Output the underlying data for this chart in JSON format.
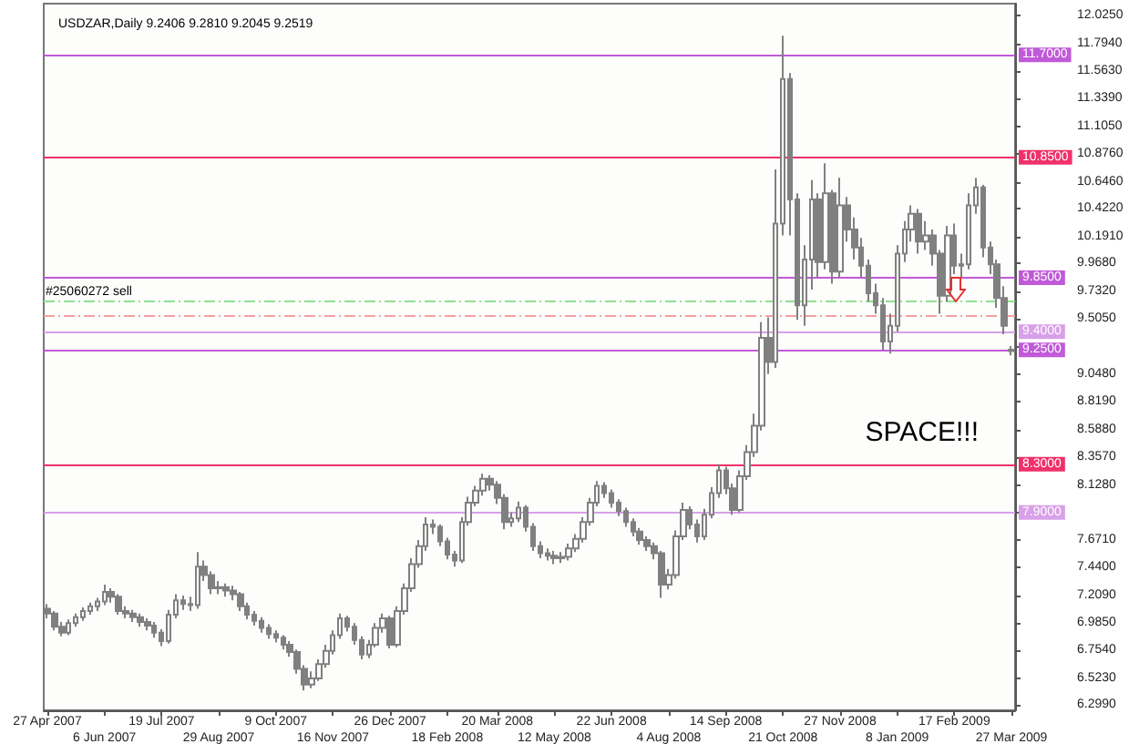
{
  "chart_data": {
    "type": "candlestick",
    "title": "USDZAR,Daily 9.2406 9.2810 9.2045 9.2519",
    "color": "#808080",
    "categories": [
      "27 Apr 2007",
      null,
      null,
      null,
      null,
      null,
      null,
      null,
      "6 Jun 2007",
      null,
      null,
      null,
      null,
      null,
      null,
      null,
      "19 Jul 2007",
      null,
      null,
      null,
      null,
      null,
      null,
      null,
      "29 Aug 2007",
      null,
      null,
      null,
      null,
      null,
      null,
      null,
      "9 Oct 2007",
      null,
      null,
      null,
      null,
      null,
      null,
      null,
      "16 Nov 2007",
      null,
      null,
      null,
      null,
      null,
      null,
      null,
      "26 Dec 2007",
      null,
      null,
      null,
      null,
      null,
      null,
      null,
      "18 Feb 2008",
      null,
      null,
      null,
      null,
      null,
      null,
      "20 Mar 2008",
      null,
      null,
      null,
      null,
      null,
      null,
      null,
      "12 May 2008",
      null,
      null,
      null,
      null,
      null,
      null,
      null,
      "22 Jun 2008",
      null,
      null,
      null,
      null,
      null,
      null,
      null,
      "4 Aug 2008",
      null,
      null,
      null,
      null,
      null,
      null,
      null,
      "14 Sep 2008",
      null,
      null,
      null,
      null,
      null,
      null,
      null,
      "21 Oct 2008",
      null,
      null,
      null,
      null,
      null,
      null,
      null,
      "27 Nov 2008",
      null,
      null,
      null,
      null,
      null,
      null,
      null,
      "8 Jan 2009",
      null,
      null,
      null,
      null,
      null,
      null,
      null,
      "17 Feb 2009",
      null,
      null,
      null,
      null,
      null,
      null,
      null,
      "27 Mar 2009"
    ],
    "ohlc": [
      [
        7.1,
        7.14,
        7.02,
        7.06
      ],
      [
        7.06,
        7.08,
        6.92,
        6.95
      ],
      [
        6.95,
        6.99,
        6.87,
        6.9
      ],
      [
        6.9,
        7.01,
        6.88,
        6.98
      ],
      [
        6.98,
        7.06,
        6.95,
        7.03
      ],
      [
        7.03,
        7.11,
        7.0,
        7.08
      ],
      [
        7.08,
        7.15,
        7.05,
        7.12
      ],
      [
        7.12,
        7.19,
        7.08,
        7.16
      ],
      [
        7.16,
        7.3,
        7.13,
        7.24
      ],
      [
        7.24,
        7.27,
        7.15,
        7.2
      ],
      [
        7.2,
        7.22,
        7.05,
        7.08
      ],
      [
        7.08,
        7.12,
        7.02,
        7.06
      ],
      [
        7.06,
        7.09,
        6.99,
        7.03
      ],
      [
        7.03,
        7.06,
        6.95,
        6.99
      ],
      [
        6.99,
        7.02,
        6.92,
        6.96
      ],
      [
        6.96,
        6.99,
        6.86,
        6.9
      ],
      [
        6.9,
        6.93,
        6.79,
        6.83
      ],
      [
        6.83,
        7.09,
        6.81,
        7.05
      ],
      [
        7.05,
        7.22,
        7.02,
        7.17
      ],
      [
        7.17,
        7.21,
        7.09,
        7.14
      ],
      [
        7.14,
        7.2,
        7.08,
        7.13
      ],
      [
        7.13,
        7.57,
        7.1,
        7.45
      ],
      [
        7.45,
        7.5,
        7.33,
        7.38
      ],
      [
        7.38,
        7.41,
        7.22,
        7.27
      ],
      [
        7.27,
        7.33,
        7.22,
        7.28
      ],
      [
        7.28,
        7.31,
        7.2,
        7.25
      ],
      [
        7.25,
        7.29,
        7.17,
        7.22
      ],
      [
        7.22,
        7.24,
        7.08,
        7.12
      ],
      [
        7.12,
        7.15,
        7.01,
        7.05
      ],
      [
        7.05,
        7.08,
        6.96,
        7.0
      ],
      [
        7.0,
        7.03,
        6.9,
        6.94
      ],
      [
        6.94,
        6.97,
        6.85,
        6.89
      ],
      [
        6.89,
        6.92,
        6.82,
        6.86
      ],
      [
        6.86,
        6.88,
        6.76,
        6.8
      ],
      [
        6.8,
        6.83,
        6.7,
        6.74
      ],
      [
        6.74,
        6.76,
        6.56,
        6.6
      ],
      [
        6.6,
        6.63,
        6.42,
        6.47
      ],
      [
        6.47,
        6.58,
        6.44,
        6.52
      ],
      [
        6.52,
        6.68,
        6.5,
        6.64
      ],
      [
        6.64,
        6.8,
        6.61,
        6.75
      ],
      [
        6.75,
        6.92,
        6.72,
        6.88
      ],
      [
        6.88,
        7.06,
        6.85,
        7.02
      ],
      [
        7.02,
        7.04,
        6.91,
        6.95
      ],
      [
        6.95,
        6.98,
        6.8,
        6.84
      ],
      [
        6.84,
        6.87,
        6.68,
        6.72
      ],
      [
        6.72,
        6.84,
        6.69,
        6.8
      ],
      [
        6.8,
        6.98,
        6.78,
        6.94
      ],
      [
        6.94,
        7.06,
        6.9,
        7.02
      ],
      [
        7.02,
        7.04,
        6.77,
        6.8
      ],
      [
        6.8,
        7.12,
        6.78,
        7.08
      ],
      [
        7.08,
        7.31,
        7.05,
        7.27
      ],
      [
        7.27,
        7.52,
        7.24,
        7.47
      ],
      [
        7.47,
        7.67,
        7.44,
        7.62
      ],
      [
        7.62,
        7.86,
        7.58,
        7.8
      ],
      [
        7.8,
        7.84,
        7.72,
        7.78
      ],
      [
        7.78,
        7.8,
        7.62,
        7.66
      ],
      [
        7.66,
        7.69,
        7.51,
        7.55
      ],
      [
        7.55,
        7.58,
        7.45,
        7.5
      ],
      [
        7.5,
        7.86,
        7.48,
        7.82
      ],
      [
        7.82,
        8.03,
        7.79,
        7.98
      ],
      [
        7.98,
        8.12,
        7.95,
        8.08
      ],
      [
        8.08,
        8.22,
        8.04,
        8.18
      ],
      [
        8.18,
        8.21,
        8.08,
        8.13
      ],
      [
        8.13,
        8.16,
        7.97,
        8.02
      ],
      [
        8.02,
        8.05,
        7.76,
        7.82
      ],
      [
        7.82,
        7.9,
        7.78,
        7.85
      ],
      [
        7.85,
        7.99,
        7.82,
        7.94
      ],
      [
        7.94,
        7.96,
        7.74,
        7.78
      ],
      [
        7.78,
        7.81,
        7.58,
        7.62
      ],
      [
        7.62,
        7.66,
        7.52,
        7.56
      ],
      [
        7.56,
        7.6,
        7.5,
        7.54
      ],
      [
        7.54,
        7.58,
        7.47,
        7.52
      ],
      [
        7.52,
        7.57,
        7.48,
        7.53
      ],
      [
        7.53,
        7.64,
        7.5,
        7.6
      ],
      [
        7.6,
        7.72,
        7.57,
        7.68
      ],
      [
        7.68,
        7.86,
        7.65,
        7.82
      ],
      [
        7.82,
        8.02,
        7.79,
        7.98
      ],
      [
        7.98,
        8.16,
        7.95,
        8.12
      ],
      [
        8.12,
        8.15,
        8.02,
        8.06
      ],
      [
        8.06,
        8.09,
        7.94,
        7.98
      ],
      [
        7.98,
        8.01,
        7.87,
        7.91
      ],
      [
        7.91,
        7.94,
        7.78,
        7.82
      ],
      [
        7.82,
        7.85,
        7.7,
        7.74
      ],
      [
        7.74,
        7.77,
        7.63,
        7.67
      ],
      [
        7.67,
        7.7,
        7.58,
        7.62
      ],
      [
        7.62,
        7.65,
        7.51,
        7.56
      ],
      [
        7.56,
        7.58,
        7.19,
        7.3
      ],
      [
        7.3,
        7.43,
        7.26,
        7.38
      ],
      [
        7.38,
        7.75,
        7.35,
        7.7
      ],
      [
        7.7,
        7.98,
        7.67,
        7.92
      ],
      [
        7.92,
        7.95,
        7.76,
        7.8
      ],
      [
        7.8,
        7.84,
        7.65,
        7.7
      ],
      [
        7.7,
        7.93,
        7.67,
        7.88
      ],
      [
        7.88,
        8.11,
        7.85,
        8.06
      ],
      [
        8.06,
        8.3,
        8.02,
        8.25
      ],
      [
        8.25,
        8.28,
        8.05,
        8.1
      ],
      [
        8.1,
        8.14,
        7.88,
        7.92
      ],
      [
        7.92,
        8.25,
        7.9,
        8.2
      ],
      [
        8.2,
        8.46,
        8.17,
        8.4
      ],
      [
        8.4,
        8.72,
        8.36,
        8.62
      ],
      [
        8.62,
        9.48,
        8.58,
        9.35
      ],
      [
        9.35,
        9.52,
        9.05,
        9.15
      ],
      [
        9.15,
        10.75,
        9.1,
        10.3
      ],
      [
        10.3,
        11.86,
        10.2,
        11.5
      ],
      [
        11.5,
        11.55,
        10.2,
        10.5
      ],
      [
        10.5,
        10.55,
        9.5,
        9.62
      ],
      [
        9.62,
        10.12,
        9.45,
        10.0
      ],
      [
        10.0,
        10.66,
        9.75,
        10.5
      ],
      [
        10.5,
        10.55,
        9.85,
        9.98
      ],
      [
        9.98,
        10.8,
        9.92,
        10.55
      ],
      [
        10.55,
        10.58,
        9.8,
        9.9
      ],
      [
        9.9,
        10.68,
        9.85,
        10.45
      ],
      [
        10.45,
        10.52,
        10.15,
        10.25
      ],
      [
        10.25,
        10.35,
        10.0,
        10.1
      ],
      [
        10.1,
        10.18,
        9.85,
        9.95
      ],
      [
        9.95,
        10.0,
        9.65,
        9.72
      ],
      [
        9.72,
        9.8,
        9.55,
        9.62
      ],
      [
        9.62,
        9.68,
        9.25,
        9.32
      ],
      [
        9.32,
        9.55,
        9.22,
        9.45
      ],
      [
        9.45,
        10.12,
        9.4,
        10.05
      ],
      [
        10.05,
        10.32,
        9.98,
        10.25
      ],
      [
        10.25,
        10.45,
        10.15,
        10.38
      ],
      [
        10.38,
        10.42,
        10.05,
        10.15
      ],
      [
        10.15,
        10.32,
        10.08,
        10.2
      ],
      [
        10.2,
        10.25,
        9.95,
        10.05
      ],
      [
        10.05,
        10.08,
        9.55,
        9.7
      ],
      [
        9.7,
        10.28,
        9.65,
        10.2
      ],
      [
        10.2,
        10.3,
        9.88,
        9.95
      ],
      [
        9.95,
        10.05,
        9.85,
        9.96
      ],
      [
        9.96,
        10.55,
        9.92,
        10.45
      ],
      [
        10.45,
        10.68,
        10.38,
        10.6
      ],
      [
        10.6,
        10.62,
        10.02,
        10.1
      ],
      [
        10.1,
        10.15,
        9.88,
        9.96
      ],
      [
        9.96,
        10.0,
        9.6,
        9.68
      ],
      [
        9.68,
        9.78,
        9.38,
        9.45
      ],
      [
        9.2406,
        9.281,
        9.2045,
        9.2519
      ]
    ],
    "ylim": [
      6.256,
      12.126
    ],
    "yticks": [
      {
        "value": 12.025,
        "label": "12.0250"
      },
      {
        "value": 11.794,
        "label": "11.7940"
      },
      {
        "value": 11.563,
        "label": "11.5630"
      },
      {
        "value": 11.339,
        "label": "11.3390"
      },
      {
        "value": 11.105,
        "label": "11.1050"
      },
      {
        "value": 10.876,
        "label": "10.8760"
      },
      {
        "value": 10.646,
        "label": "10.6460"
      },
      {
        "value": 10.422,
        "label": "10.4220"
      },
      {
        "value": 10.191,
        "label": "10.1910"
      },
      {
        "value": 9.968,
        "label": "9.9680"
      },
      {
        "value": 9.732,
        "label": "9.7320"
      },
      {
        "value": 9.505,
        "label": "9.5050"
      },
      {
        "value": 9.275,
        "label": null
      },
      {
        "value": 9.048,
        "label": "9.0480"
      },
      {
        "value": 8.819,
        "label": "8.8190"
      },
      {
        "value": 8.588,
        "label": "8.5880"
      },
      {
        "value": 8.357,
        "label": "8.3570"
      },
      {
        "value": 8.128,
        "label": "8.1280"
      },
      {
        "value": 7.899,
        "label": null
      },
      {
        "value": 7.671,
        "label": "7.6710"
      },
      {
        "value": 7.44,
        "label": "7.4400"
      },
      {
        "value": 7.209,
        "label": "7.2090"
      },
      {
        "value": 6.985,
        "label": "6.9850"
      },
      {
        "value": 6.754,
        "label": "6.7540"
      },
      {
        "value": 6.523,
        "label": "6.5230"
      },
      {
        "value": 6.299,
        "label": "6.2990"
      }
    ],
    "ref_lines": [
      {
        "axis": "y",
        "value": 11.7,
        "label": "11.7000",
        "color": "#c05ad8",
        "line_style": "solid"
      },
      {
        "axis": "y",
        "value": 10.85,
        "label": "10.8500",
        "color": "#f0306a",
        "line_style": "solid"
      },
      {
        "axis": "y",
        "value": 9.85,
        "label": "9.8500",
        "color": "#c05ad8",
        "line_style": "solid"
      },
      {
        "axis": "y",
        "value": 9.66,
        "label": "#25060272 sell",
        "color": "#90e090",
        "line_style": "dashed"
      },
      {
        "axis": "y",
        "value": 9.53,
        "color": "#f4a0a0",
        "line_style": "dashed"
      },
      {
        "axis": "y",
        "value": 9.4,
        "label": "9.4000",
        "color": "#d8a0e8",
        "line_style": "solid"
      },
      {
        "axis": "y",
        "value": 9.25,
        "label": "9.2500",
        "color": "#c05ad8",
        "line_style": "solid"
      },
      {
        "axis": "y",
        "value": 8.3,
        "label": "8.3000",
        "color": "#f0306a",
        "line_style": "solid"
      },
      {
        "axis": "y",
        "value": 7.9,
        "label": "7.9000",
        "color": "#d8a0e8",
        "line_style": "solid"
      }
    ],
    "annotations": [
      "SPACE!!!"
    ]
  }
}
